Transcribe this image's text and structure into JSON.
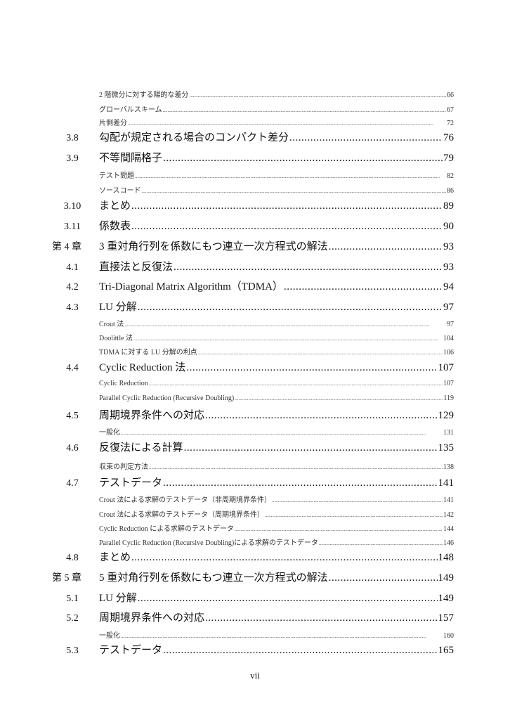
{
  "toc": [
    {
      "level": "sub",
      "num": "",
      "title": "2 階微分に対する陽的な差分",
      "page": "66"
    },
    {
      "level": "sub",
      "num": "",
      "title": "グローバルスキーム",
      "page": "67"
    },
    {
      "level": "sub",
      "num": "",
      "title": "片側差分",
      "page": "72"
    },
    {
      "level": "main",
      "num": "3.8",
      "title": "勾配が規定される場合のコンパクト差分",
      "page": "76"
    },
    {
      "level": "main",
      "num": "3.9",
      "title": "不等間隔格子",
      "page": "79"
    },
    {
      "level": "sub",
      "num": "",
      "title": "テスト問題",
      "page": "82"
    },
    {
      "level": "sub",
      "num": "",
      "title": "ソースコード",
      "page": "86"
    },
    {
      "level": "main",
      "num": "3.10",
      "title": "まとめ",
      "page": "89"
    },
    {
      "level": "main",
      "num": "3.11",
      "title": "係数表",
      "page": "90"
    },
    {
      "level": "chapter",
      "num": "第 4 章",
      "title": "3 重対角行列を係数にもつ連立一次方程式の解法",
      "page": "93"
    },
    {
      "level": "main",
      "num": "4.1",
      "title": "直接法と反復法",
      "page": "93"
    },
    {
      "level": "main",
      "num": "4.2",
      "title": "Tri-Diagonal Matrix Algorithm（TDMA）",
      "page": "94"
    },
    {
      "level": "main",
      "num": "4.3",
      "title": "LU 分解",
      "page": "97"
    },
    {
      "level": "sub",
      "num": "",
      "title": "Crout 法",
      "page": "97"
    },
    {
      "level": "sub",
      "num": "",
      "title": "Doolittle 法",
      "page": "104"
    },
    {
      "level": "sub",
      "num": "",
      "title": "TDMA に対する LU 分解の利点",
      "page": "106"
    },
    {
      "level": "main",
      "num": "4.4",
      "title": "Cyclic Reduction 法",
      "page": "107"
    },
    {
      "level": "sub",
      "num": "",
      "title": "Cyclic Reduction",
      "page": "107"
    },
    {
      "level": "sub",
      "num": "",
      "title": "Parallel Cyclic Reduction (Recursive Doubling)",
      "page": "119"
    },
    {
      "level": "main",
      "num": "4.5",
      "title": "周期境界条件への対応",
      "page": "129"
    },
    {
      "level": "sub",
      "num": "",
      "title": "一般化",
      "page": "131"
    },
    {
      "level": "main",
      "num": "4.6",
      "title": "反復法による計算",
      "page": "135"
    },
    {
      "level": "sub",
      "num": "",
      "title": "収束の判定方法",
      "page": "138"
    },
    {
      "level": "main",
      "num": "4.7",
      "title": "テストデータ",
      "page": "141"
    },
    {
      "level": "sub",
      "num": "",
      "title": "Crout 法による求解のテストデータ（非周期境界条件）",
      "page": "141"
    },
    {
      "level": "sub",
      "num": "",
      "title": "Crout 法による求解のテストデータ（周期境界条件）",
      "page": "142"
    },
    {
      "level": "sub",
      "num": "",
      "title": "Cyclic Reduction による求解のテストデータ",
      "page": "144"
    },
    {
      "level": "sub",
      "num": "",
      "title": "Parallel Cyclic Reduction (Recursive Doubling)による求解のテストデータ",
      "page": "146"
    },
    {
      "level": "main",
      "num": "4.8",
      "title": "まとめ",
      "page": "148"
    },
    {
      "level": "chapter",
      "num": "第 5 章",
      "title": "5 重対角行列を係数にもつ連立一次方程式の解法",
      "page": "149"
    },
    {
      "level": "main",
      "num": "5.1",
      "title": "LU 分解",
      "page": "149"
    },
    {
      "level": "main",
      "num": "5.2",
      "title": "周期境界条件への対応",
      "page": "157"
    },
    {
      "level": "sub",
      "num": "",
      "title": "一般化",
      "page": "160"
    },
    {
      "level": "main",
      "num": "5.3",
      "title": "テストデータ",
      "page": "165"
    }
  ],
  "folio": "vii"
}
